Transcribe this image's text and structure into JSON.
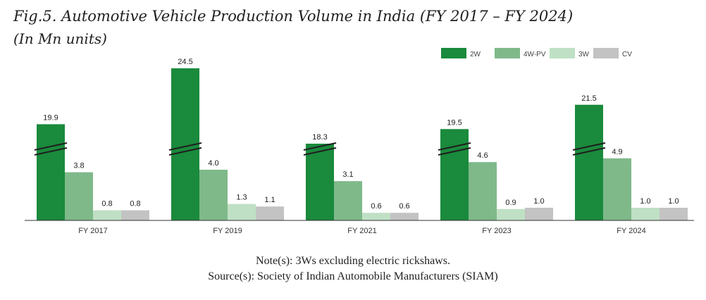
{
  "title": "Fig.5. Automotive Vehicle Production Volume in India (FY 2017 – FY 2024)",
  "subtitle": "(In Mn units)",
  "note": "Note(s): 3Ws excluding electric rickshaws.",
  "source": "Source(s): Society of Indian Automobile Manufacturers (SIAM)",
  "chart_data": {
    "type": "bar",
    "categories": [
      "FY 2017",
      "FY 2019",
      "FY 2021",
      "FY 2023",
      "FY 2024"
    ],
    "series": [
      {
        "name": "2W",
        "color": "#1a8a3c",
        "values": [
          19.9,
          24.5,
          18.3,
          19.5,
          21.5
        ]
      },
      {
        "name": "4W-PV",
        "color": "#7fb98a",
        "values": [
          3.8,
          4.0,
          3.1,
          4.6,
          4.9
        ]
      },
      {
        "name": "3W",
        "color": "#bfe0c4",
        "values": [
          0.8,
          1.3,
          0.6,
          0.9,
          1.0
        ]
      },
      {
        "name": "CV",
        "color": "#c3c3c3",
        "values": [
          0.8,
          1.1,
          0.6,
          1.0,
          1.0
        ]
      }
    ],
    "axis_break": true,
    "legend_position": "top-right",
    "grid": false
  }
}
